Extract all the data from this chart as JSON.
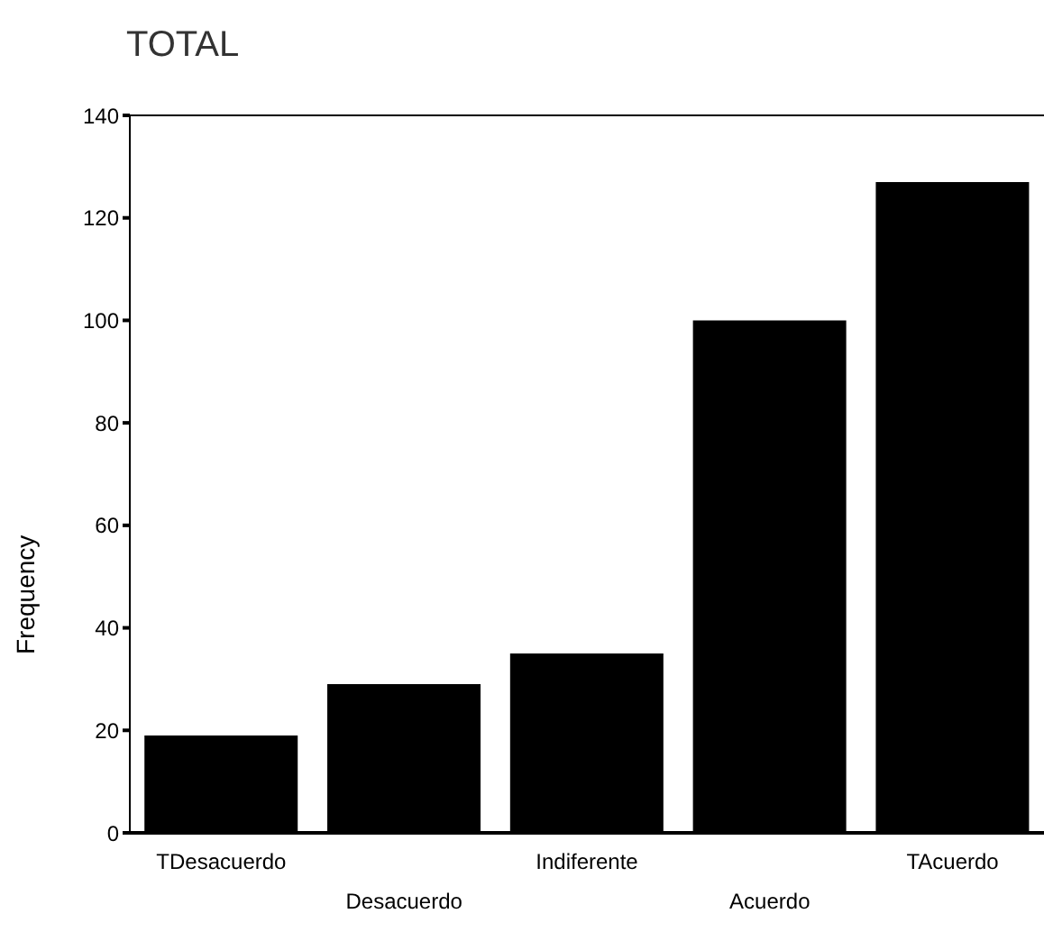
{
  "chart_data": {
    "type": "bar",
    "title": "TOTAL",
    "ylabel": "Frequency",
    "categories": [
      "TDesacuerdo",
      "Desacuerdo",
      "Indiferente",
      "Acuerdo",
      "TAcuerdo"
    ],
    "values": [
      19,
      29,
      35,
      100,
      127
    ],
    "color": "#000000",
    "ylim": [
      0,
      140
    ],
    "yticks": [
      0,
      20,
      40,
      60,
      80,
      100,
      120,
      140
    ],
    "grid": false
  }
}
